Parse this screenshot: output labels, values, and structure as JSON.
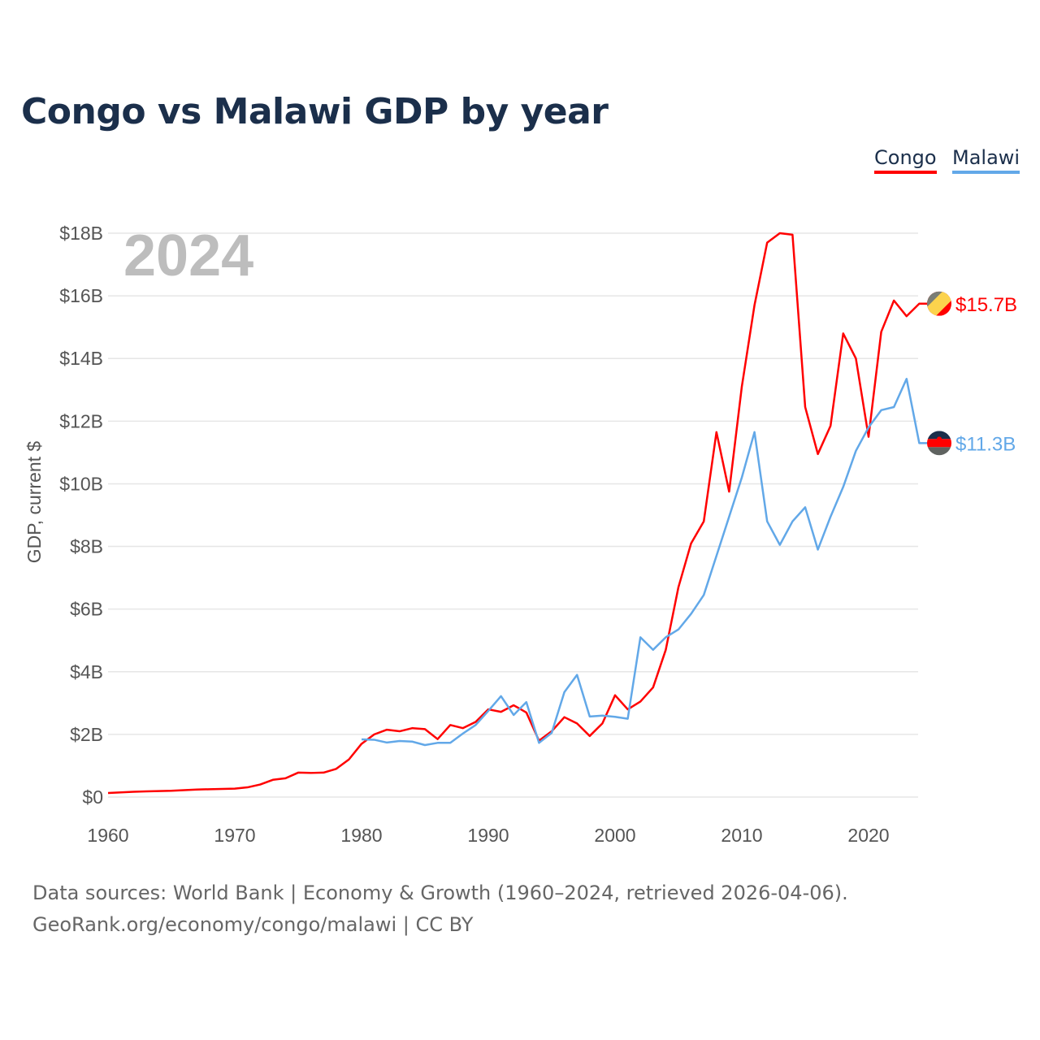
{
  "chart_data": {
    "type": "line",
    "title": "Congo vs Malawi GDP by year",
    "xlabel": "",
    "ylabel": "GDP, current $",
    "year_watermark": "2024",
    "xlim": [
      1960,
      2024
    ],
    "ylim": [
      0,
      18
    ],
    "x_ticks": [
      1960,
      1970,
      1980,
      1990,
      2000,
      2010,
      2020
    ],
    "x_tick_labels": [
      "1960",
      "1970",
      "1980",
      "1990",
      "2000",
      "2010",
      "2020"
    ],
    "y_ticks": [
      0,
      2,
      4,
      6,
      8,
      10,
      12,
      14,
      16,
      18
    ],
    "y_tick_labels": [
      "$0",
      "$2B",
      "$4B",
      "$6B",
      "$8B",
      "$10B",
      "$12B",
      "$14B",
      "$16B",
      "$18B"
    ],
    "grid": true,
    "legend_position": "top-right",
    "series": [
      {
        "name": "Congo",
        "color": "#ff0000",
        "start_year": 1960,
        "end_label": "$15.7B",
        "flag_icon": "congo-flag-icon",
        "values": [
          0.13,
          0.15,
          0.17,
          0.18,
          0.19,
          0.2,
          0.22,
          0.24,
          0.25,
          0.26,
          0.27,
          0.31,
          0.4,
          0.55,
          0.6,
          0.78,
          0.77,
          0.78,
          0.9,
          1.2,
          1.7,
          2.0,
          2.15,
          2.1,
          2.2,
          2.17,
          1.85,
          2.3,
          2.2,
          2.4,
          2.8,
          2.72,
          2.93,
          2.7,
          1.8,
          2.1,
          2.55,
          2.35,
          1.95,
          2.35,
          3.25,
          2.8,
          3.05,
          3.5,
          4.7,
          6.7,
          8.1,
          8.8,
          11.65,
          9.75,
          13.1,
          15.7,
          17.7,
          18.0,
          17.95,
          12.45,
          10.95,
          11.85,
          14.8,
          14.0,
          11.5,
          14.85,
          15.85,
          15.35,
          15.75
        ]
      },
      {
        "name": "Malawi",
        "color": "#62a8e8",
        "start_year": 1980,
        "end_label": "$11.3B",
        "flag_icon": "malawi-flag-icon",
        "values": [
          1.84,
          1.83,
          1.74,
          1.79,
          1.77,
          1.66,
          1.73,
          1.73,
          2.03,
          2.3,
          2.75,
          3.22,
          2.62,
          3.03,
          1.73,
          2.05,
          3.35,
          3.9,
          2.57,
          2.6,
          2.56,
          2.5,
          5.1,
          4.7,
          5.1,
          5.35,
          5.85,
          6.45,
          7.7,
          8.95,
          10.2,
          11.65,
          8.8,
          8.05,
          8.8,
          9.25,
          7.9,
          8.95,
          9.9,
          11.05,
          11.8,
          12.35,
          12.45,
          13.35,
          11.3
        ]
      }
    ]
  },
  "footer": {
    "line1": "Data sources: World Bank | Economy & Growth (1960–2024, retrieved 2026-04-06).",
    "line2": "GeoRank.org/economy/congo/malawi | CC BY"
  }
}
